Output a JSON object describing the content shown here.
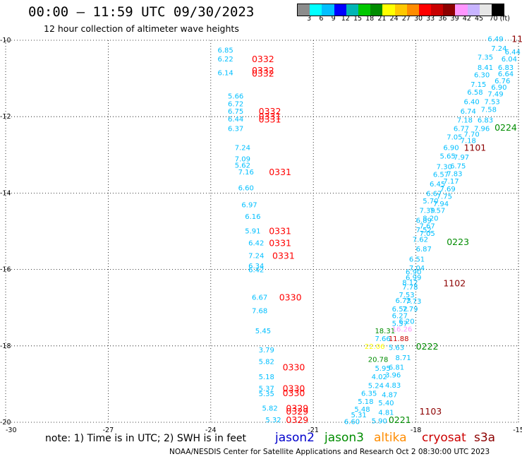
{
  "header": {
    "title": "00:00 – 11:59 UTC 09/30/2023",
    "subtitle": "12 hour collection of altimeter wave heights"
  },
  "colorbar": {
    "colors": [
      "#8c8c8c",
      "#00ffff",
      "#00bfff",
      "#0000ff",
      "#00b5b5",
      "#00c800",
      "#008c00",
      "#ffff00",
      "#ffc800",
      "#ff8c00",
      "#ff0000",
      "#c80000",
      "#8c0000",
      "#ff96ff",
      "#c8b4ff",
      "#e6e6e6",
      "#000000"
    ],
    "labels": [
      "3",
      "6",
      "9",
      "12",
      "15",
      "18",
      "21",
      "24",
      "27",
      "30",
      "33",
      "36",
      "39",
      "42",
      "45",
      "70 (ft)"
    ]
  },
  "legend": [
    {
      "name": "jason2",
      "color": "#0000cc"
    },
    {
      "name": "jason3",
      "color": "#008c00"
    },
    {
      "name": "altika",
      "color": "#ff8c00"
    },
    {
      "name": "cryosat",
      "color": "#cc0000"
    },
    {
      "name": "s3a",
      "color": "#8c0000"
    }
  ],
  "note": "note: 1) Time is in UTC; 2) SWH is in feet",
  "credit": "NOAA/NESDIS Center for Satellite Applications and Research  Oct  2 08:30:00 UTC 2023",
  "chart_data": {
    "type": "scatter",
    "title": "00:00 – 11:59 UTC 09/30/2023",
    "subtitle": "12 hour collection of altimeter wave heights",
    "xlabel": "",
    "ylabel": "",
    "xlim": [
      -30,
      -15
    ],
    "ylim": [
      -20,
      -10
    ],
    "xticks": [
      "-30",
      "-27",
      "-24",
      "-21",
      "-18",
      "-15"
    ],
    "yticks": [
      "-10",
      "-12",
      "-14",
      "-16",
      "-18",
      "-20"
    ],
    "grid": true,
    "units": "ft",
    "pass_labels": [
      {
        "text": "1100",
        "lon": -15.2,
        "lat": -9.95,
        "color": "#8c0000"
      },
      {
        "text": "0224",
        "lon": -15.7,
        "lat": -12.27,
        "color": "#008c00"
      },
      {
        "text": "1101",
        "lon": -16.6,
        "lat": -12.8,
        "color": "#8c0000"
      },
      {
        "text": "0223",
        "lon": -17.1,
        "lat": -15.27,
        "color": "#008c00"
      },
      {
        "text": "1102",
        "lon": -17.2,
        "lat": -16.35,
        "color": "#8c0000"
      },
      {
        "text": "0222",
        "lon": -18.0,
        "lat": -18.0,
        "color": "#008c00"
      },
      {
        "text": "1103",
        "lon": -17.9,
        "lat": -19.7,
        "color": "#8c0000"
      },
      {
        "text": "0221",
        "lon": -18.8,
        "lat": -19.93,
        "color": "#008c00"
      },
      {
        "text": "0332",
        "lon": -22.8,
        "lat": -10.48,
        "color": "#ff0000"
      },
      {
        "text": "0332",
        "lon": -22.8,
        "lat": -10.78,
        "color": "#ff0000"
      },
      {
        "text": "0332",
        "lon": -22.8,
        "lat": -10.86,
        "color": "#ff0000"
      },
      {
        "text": "0332",
        "lon": -22.6,
        "lat": -11.85,
        "color": "#ff0000"
      },
      {
        "text": "0331",
        "lon": -22.6,
        "lat": -11.98,
        "color": "#ff0000"
      },
      {
        "text": "0331",
        "lon": -22.6,
        "lat": -12.06,
        "color": "#ff0000"
      },
      {
        "text": "0331",
        "lon": -22.3,
        "lat": -13.44,
        "color": "#ff0000"
      },
      {
        "text": "0331",
        "lon": -22.3,
        "lat": -14.98,
        "color": "#ff0000"
      },
      {
        "text": "0331",
        "lon": -22.3,
        "lat": -15.3,
        "color": "#ff0000"
      },
      {
        "text": "0331",
        "lon": -22.2,
        "lat": -15.63,
        "color": "#ff0000"
      },
      {
        "text": "0330",
        "lon": -22.0,
        "lat": -16.72,
        "color": "#ff0000"
      },
      {
        "text": "0330",
        "lon": -21.9,
        "lat": -18.55,
        "color": "#ff0000"
      },
      {
        "text": "0330",
        "lon": -21.9,
        "lat": -19.1,
        "color": "#ff0000"
      },
      {
        "text": "0330",
        "lon": -21.9,
        "lat": -19.22,
        "color": "#ff0000"
      },
      {
        "text": "0329",
        "lon": -21.8,
        "lat": -19.62,
        "color": "#ff0000"
      },
      {
        "text": "0329",
        "lon": -21.8,
        "lat": -19.7,
        "color": "#ff0000"
      },
      {
        "text": "0329",
        "lon": -21.8,
        "lat": -19.93,
        "color": "#ff0000"
      }
    ],
    "wave_heights": [
      {
        "v": "6.85",
        "lon": -23.8,
        "lat": -10.25,
        "color": "#00bfff"
      },
      {
        "v": "6.22",
        "lon": -23.8,
        "lat": -10.48,
        "color": "#00bfff"
      },
      {
        "v": "6.14",
        "lon": -23.8,
        "lat": -10.84,
        "color": "#00bfff"
      },
      {
        "v": "5.66",
        "lon": -23.5,
        "lat": -11.45,
        "color": "#00bfff"
      },
      {
        "v": "6.72",
        "lon": -23.5,
        "lat": -11.65,
        "color": "#00bfff"
      },
      {
        "v": "6.75",
        "lon": -23.5,
        "lat": -11.85,
        "color": "#00bfff"
      },
      {
        "v": "6.44",
        "lon": -23.5,
        "lat": -12.05,
        "color": "#00bfff"
      },
      {
        "v": "6.37",
        "lon": -23.5,
        "lat": -12.3,
        "color": "#00bfff"
      },
      {
        "v": "7.24",
        "lon": -23.3,
        "lat": -12.8,
        "color": "#00bfff"
      },
      {
        "v": "7.09",
        "lon": -23.3,
        "lat": -13.1,
        "color": "#00bfff"
      },
      {
        "v": "5.62",
        "lon": -23.3,
        "lat": -13.26,
        "color": "#00bfff"
      },
      {
        "v": "7.16",
        "lon": -23.2,
        "lat": -13.44,
        "color": "#00bfff"
      },
      {
        "v": "6.60",
        "lon": -23.2,
        "lat": -13.85,
        "color": "#00bfff"
      },
      {
        "v": "6.97",
        "lon": -23.1,
        "lat": -14.3,
        "color": "#00bfff"
      },
      {
        "v": "6.16",
        "lon": -23.0,
        "lat": -14.6,
        "color": "#00bfff"
      },
      {
        "v": "5.91",
        "lon": -23.0,
        "lat": -14.98,
        "color": "#00bfff"
      },
      {
        "v": "6.42",
        "lon": -22.9,
        "lat": -15.3,
        "color": "#00bfff"
      },
      {
        "v": "7.24",
        "lon": -22.9,
        "lat": -15.63,
        "color": "#00bfff"
      },
      {
        "v": "6.34",
        "lon": -22.9,
        "lat": -15.9,
        "color": "#00bfff"
      },
      {
        "v": "6.42",
        "lon": -22.9,
        "lat": -16.0,
        "color": "#00bfff"
      },
      {
        "v": "6.67",
        "lon": -22.8,
        "lat": -16.72,
        "color": "#00bfff"
      },
      {
        "v": "7.68",
        "lon": -22.8,
        "lat": -17.07,
        "color": "#00bfff"
      },
      {
        "v": "5.45",
        "lon": -22.7,
        "lat": -17.6,
        "color": "#00bfff"
      },
      {
        "v": "3.79",
        "lon": -22.6,
        "lat": -18.1,
        "color": "#00bfff"
      },
      {
        "v": "5.82",
        "lon": -22.6,
        "lat": -18.4,
        "color": "#00bfff"
      },
      {
        "v": "5.18",
        "lon": -22.6,
        "lat": -18.8,
        "color": "#00bfff"
      },
      {
        "v": "5.37",
        "lon": -22.6,
        "lat": -19.1,
        "color": "#00bfff"
      },
      {
        "v": "5.35",
        "lon": -22.6,
        "lat": -19.24,
        "color": "#00bfff"
      },
      {
        "v": "5.82",
        "lon": -22.5,
        "lat": -19.62,
        "color": "#00bfff"
      },
      {
        "v": "5.32",
        "lon": -22.4,
        "lat": -19.93,
        "color": "#00bfff"
      },
      {
        "v": "6.49",
        "lon": -15.9,
        "lat": -9.95,
        "color": "#00bfff"
      },
      {
        "v": "7.24",
        "lon": -15.8,
        "lat": -10.2,
        "color": "#00bfff"
      },
      {
        "v": "6.44",
        "lon": -15.4,
        "lat": -10.3,
        "color": "#00bfff"
      },
      {
        "v": "6.04",
        "lon": -15.5,
        "lat": -10.48,
        "color": "#00bfff"
      },
      {
        "v": "7.35",
        "lon": -16.2,
        "lat": -10.43,
        "color": "#00bfff"
      },
      {
        "v": "8.41",
        "lon": -16.2,
        "lat": -10.7,
        "color": "#00bfff"
      },
      {
        "v": "6.83",
        "lon": -15.6,
        "lat": -10.7,
        "color": "#00bfff"
      },
      {
        "v": "6.64",
        "lon": -15.6,
        "lat": -10.87,
        "color": "#00bfff"
      },
      {
        "v": "6.30",
        "lon": -16.3,
        "lat": -10.9,
        "color": "#00bfff"
      },
      {
        "v": "6.76",
        "lon": -15.7,
        "lat": -11.05,
        "color": "#00bfff"
      },
      {
        "v": "7.15",
        "lon": -16.4,
        "lat": -11.15,
        "color": "#00bfff"
      },
      {
        "v": "6.90",
        "lon": -15.8,
        "lat": -11.22,
        "color": "#00bfff"
      },
      {
        "v": "6.58",
        "lon": -16.5,
        "lat": -11.35,
        "color": "#00bfff"
      },
      {
        "v": "7.49",
        "lon": -15.9,
        "lat": -11.4,
        "color": "#00bfff"
      },
      {
        "v": "6.40",
        "lon": -16.6,
        "lat": -11.6,
        "color": "#00bfff"
      },
      {
        "v": "7.53",
        "lon": -16.0,
        "lat": -11.6,
        "color": "#00bfff"
      },
      {
        "v": "6.74",
        "lon": -16.7,
        "lat": -11.85,
        "color": "#00bfff"
      },
      {
        "v": "7.58",
        "lon": -16.1,
        "lat": -11.8,
        "color": "#00bfff"
      },
      {
        "v": "7.18",
        "lon": -16.8,
        "lat": -12.08,
        "color": "#00bfff"
      },
      {
        "v": "6.83",
        "lon": -16.2,
        "lat": -12.08,
        "color": "#00bfff"
      },
      {
        "v": "6.77",
        "lon": -16.9,
        "lat": -12.3,
        "color": "#00bfff"
      },
      {
        "v": "7.96",
        "lon": -16.3,
        "lat": -12.3,
        "color": "#00bfff"
      },
      {
        "v": "7.05",
        "lon": -17.1,
        "lat": -12.52,
        "color": "#00bfff"
      },
      {
        "v": "7.70",
        "lon": -16.6,
        "lat": -12.45,
        "color": "#00bfff"
      },
      {
        "v": "6.90",
        "lon": -17.2,
        "lat": -12.8,
        "color": "#00bfff"
      },
      {
        "v": "7.18",
        "lon": -16.7,
        "lat": -12.62,
        "color": "#00bfff"
      },
      {
        "v": "5.65",
        "lon": -17.3,
        "lat": -13.02,
        "color": "#00bfff"
      },
      {
        "v": "7.97",
        "lon": -16.9,
        "lat": -13.05,
        "color": "#00bfff"
      },
      {
        "v": "7.30",
        "lon": -17.4,
        "lat": -13.3,
        "color": "#00bfff"
      },
      {
        "v": "6.75",
        "lon": -17.0,
        "lat": -13.28,
        "color": "#00bfff"
      },
      {
        "v": "6.57",
        "lon": -17.5,
        "lat": -13.5,
        "color": "#00bfff"
      },
      {
        "v": "7.83",
        "lon": -17.1,
        "lat": -13.48,
        "color": "#00bfff"
      },
      {
        "v": "6.45",
        "lon": -17.6,
        "lat": -13.75,
        "color": "#00bfff"
      },
      {
        "v": "7.17",
        "lon": -17.2,
        "lat": -13.68,
        "color": "#00bfff"
      },
      {
        "v": "7.69",
        "lon": -17.3,
        "lat": -13.88,
        "color": "#00bfff"
      },
      {
        "v": "6.67",
        "lon": -17.7,
        "lat": -14.0,
        "color": "#00bfff"
      },
      {
        "v": "7.75",
        "lon": -17.4,
        "lat": -14.08,
        "color": "#00bfff"
      },
      {
        "v": "5.70",
        "lon": -17.8,
        "lat": -14.2,
        "color": "#00bfff"
      },
      {
        "v": "7.94",
        "lon": -17.5,
        "lat": -14.27,
        "color": "#00bfff"
      },
      {
        "v": "7.39",
        "lon": -17.9,
        "lat": -14.45,
        "color": "#00bfff"
      },
      {
        "v": "7.57",
        "lon": -17.6,
        "lat": -14.45,
        "color": "#00bfff"
      },
      {
        "v": "6.89",
        "lon": -18.0,
        "lat": -14.7,
        "color": "#00bfff"
      },
      {
        "v": "8.20",
        "lon": -17.8,
        "lat": -14.65,
        "color": "#00bfff"
      },
      {
        "v": "7.67",
        "lon": -17.9,
        "lat": -14.85,
        "color": "#00bfff"
      },
      {
        "v": "7.52",
        "lon": -18.0,
        "lat": -14.95,
        "color": "#00bfff"
      },
      {
        "v": "7.05",
        "lon": -17.9,
        "lat": -15.05,
        "color": "#00bfff"
      },
      {
        "v": "7.62",
        "lon": -18.1,
        "lat": -15.2,
        "color": "#00bfff"
      },
      {
        "v": "6.87",
        "lon": -18.0,
        "lat": -15.45,
        "color": "#00bfff"
      },
      {
        "v": "6.51",
        "lon": -18.2,
        "lat": -15.72,
        "color": "#00bfff"
      },
      {
        "v": "7.04",
        "lon": -18.2,
        "lat": -15.95,
        "color": "#00bfff"
      },
      {
        "v": "6.90",
        "lon": -18.3,
        "lat": -16.05,
        "color": "#00bfff"
      },
      {
        "v": "6.99",
        "lon": -18.3,
        "lat": -16.2,
        "color": "#00bfff"
      },
      {
        "v": "8.12",
        "lon": -18.4,
        "lat": -16.33,
        "color": "#00bfff"
      },
      {
        "v": "7.78",
        "lon": -18.4,
        "lat": -16.45,
        "color": "#00bfff"
      },
      {
        "v": "7.53",
        "lon": -18.5,
        "lat": -16.65,
        "color": "#00bfff"
      },
      {
        "v": "6.73",
        "lon": -18.6,
        "lat": -16.8,
        "color": "#00bfff"
      },
      {
        "v": "7.73",
        "lon": -18.3,
        "lat": -16.82,
        "color": "#00bfff"
      },
      {
        "v": "6.52",
        "lon": -18.7,
        "lat": -17.02,
        "color": "#00bfff"
      },
      {
        "v": "7.79",
        "lon": -18.4,
        "lat": -17.02,
        "color": "#00bfff"
      },
      {
        "v": "6.27",
        "lon": -18.7,
        "lat": -17.2,
        "color": "#00bfff"
      },
      {
        "v": "6.20",
        "lon": -18.5,
        "lat": -17.35,
        "color": "#00bfff"
      },
      {
        "v": "5.57",
        "lon": -18.7,
        "lat": -17.4,
        "color": "#00bfff"
      },
      {
        "v": "18.31",
        "lon": -19.2,
        "lat": -17.6,
        "color": "#008c00"
      },
      {
        "v": "16.26",
        "lon": -18.7,
        "lat": -17.55,
        "color": "#ff96ff"
      },
      {
        "v": "7.66",
        "lon": -19.2,
        "lat": -17.8,
        "color": "#00bfff"
      },
      {
        "v": "11.88",
        "lon": -18.8,
        "lat": -17.8,
        "color": "#c80000"
      },
      {
        "v": "22.06",
        "lon": -19.5,
        "lat": -18.0,
        "color": "#ffff00"
      },
      {
        "v": "5.63",
        "lon": -18.8,
        "lat": -18.03,
        "color": "#00bfff"
      },
      {
        "v": "20.78",
        "lon": -19.4,
        "lat": -18.35,
        "color": "#008c00"
      },
      {
        "v": "8.71",
        "lon": -18.6,
        "lat": -18.3,
        "color": "#00bfff"
      },
      {
        "v": "5.95",
        "lon": -19.2,
        "lat": -18.58,
        "color": "#00bfff"
      },
      {
        "v": "6.81",
        "lon": -18.8,
        "lat": -18.55,
        "color": "#00bfff"
      },
      {
        "v": "4.02",
        "lon": -19.3,
        "lat": -18.8,
        "color": "#00bfff"
      },
      {
        "v": "3.96",
        "lon": -18.9,
        "lat": -18.75,
        "color": "#00bfff"
      },
      {
        "v": "5.24",
        "lon": -19.4,
        "lat": -19.03,
        "color": "#00bfff"
      },
      {
        "v": "4.83",
        "lon": -18.9,
        "lat": -19.02,
        "color": "#00bfff"
      },
      {
        "v": "6.35",
        "lon": -19.6,
        "lat": -19.23,
        "color": "#00bfff"
      },
      {
        "v": "4.87",
        "lon": -19.0,
        "lat": -19.27,
        "color": "#00bfff"
      },
      {
        "v": "5.18",
        "lon": -19.7,
        "lat": -19.45,
        "color": "#00bfff"
      },
      {
        "v": "5.40",
        "lon": -19.1,
        "lat": -19.48,
        "color": "#00bfff"
      },
      {
        "v": "5.48",
        "lon": -19.8,
        "lat": -19.65,
        "color": "#00bfff"
      },
      {
        "v": "4.81",
        "lon": -19.1,
        "lat": -19.73,
        "color": "#00bfff"
      },
      {
        "v": "5.31",
        "lon": -19.9,
        "lat": -19.8,
        "color": "#00bfff"
      },
      {
        "v": "6.60",
        "lon": -20.1,
        "lat": -19.97,
        "color": "#00bfff"
      },
      {
        "v": "5.90",
        "lon": -19.3,
        "lat": -19.95,
        "color": "#00bfff"
      }
    ]
  }
}
